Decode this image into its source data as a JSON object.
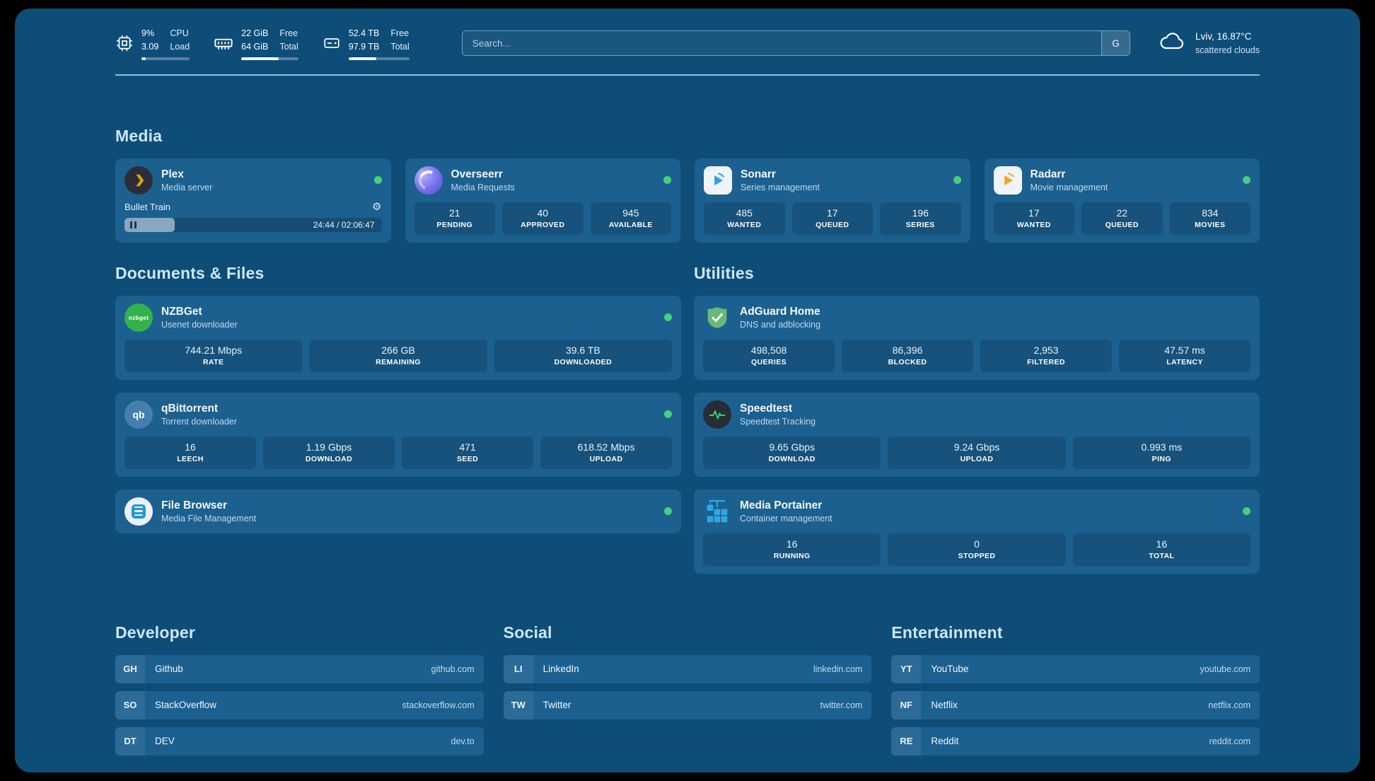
{
  "colors": {
    "background": "#0e4d78",
    "card": "#1c6090",
    "section_heading": "#cde7fa",
    "status_online": "#43d17a",
    "plex_amber": "#e5a00d",
    "sonarr_blue": "#2f9ceb",
    "radarr_orange": "#f5a623",
    "adguard_green": "#67b97a",
    "speedtest_green": "#35d06e",
    "portainer_blue": "#2fa8e1"
  },
  "header": {
    "cpu": {
      "percent": "9%",
      "load": "3.09",
      "label_top": "CPU",
      "label_bottom": "Load",
      "bar_pct": 9
    },
    "memory": {
      "free": "22 GiB",
      "total": "64 GiB",
      "label_top": "Free",
      "label_bottom": "Total",
      "bar_pct": 66
    },
    "storage": {
      "free": "52.4 TB",
      "total": "97.9 TB",
      "label_top": "Free",
      "label_bottom": "Total",
      "bar_pct": 46
    },
    "search": {
      "placeholder": "Search...",
      "button_label": "G"
    },
    "weather": {
      "location": "Lviv, 16.87°C",
      "condition": "scattered clouds"
    }
  },
  "media": {
    "title": "Media",
    "plex": {
      "title": "Plex",
      "subtitle": "Media server",
      "online": true,
      "now_playing": "Bullet Train",
      "time": "24:44 / 02:06:47",
      "progress_pct": 19.5
    },
    "overseerr": {
      "title": "Overseerr",
      "subtitle": "Media Requests",
      "online": true,
      "stats": [
        {
          "value": "21",
          "label": "PENDING"
        },
        {
          "value": "40",
          "label": "APPROVED"
        },
        {
          "value": "945",
          "label": "AVAILABLE"
        }
      ]
    },
    "sonarr": {
      "title": "Sonarr",
      "subtitle": "Series management",
      "online": true,
      "stats": [
        {
          "value": "485",
          "label": "WANTED"
        },
        {
          "value": "17",
          "label": "QUEUED"
        },
        {
          "value": "196",
          "label": "SERIES"
        }
      ]
    },
    "radarr": {
      "title": "Radarr",
      "subtitle": "Movie management",
      "online": true,
      "stats": [
        {
          "value": "17",
          "label": "WANTED"
        },
        {
          "value": "22",
          "label": "QUEUED"
        },
        {
          "value": "834",
          "label": "MOVIES"
        }
      ]
    }
  },
  "documents": {
    "title": "Documents & Files",
    "nzbget": {
      "title": "NZBGet",
      "subtitle": "Usenet downloader",
      "online": true,
      "icon_text": "nzbget",
      "stats": [
        {
          "value": "744.21 Mbps",
          "label": "RATE"
        },
        {
          "value": "266 GB",
          "label": "REMAINING"
        },
        {
          "value": "39.6 TB",
          "label": "DOWNLOADED"
        }
      ]
    },
    "qbittorrent": {
      "title": "qBittorrent",
      "subtitle": "Torrent downloader",
      "online": true,
      "icon_text": "qb",
      "stats": [
        {
          "value": "16",
          "label": "LEECH"
        },
        {
          "value": "1.19 Gbps",
          "label": "DOWNLOAD"
        },
        {
          "value": "471",
          "label": "SEED"
        },
        {
          "value": "618.52 Mbps",
          "label": "UPLOAD"
        }
      ]
    },
    "filebrowser": {
      "title": "File Browser",
      "subtitle": "Media File Management",
      "online": true
    }
  },
  "utilities": {
    "title": "Utilities",
    "adguard": {
      "title": "AdGuard Home",
      "subtitle": "DNS and adblocking",
      "stats": [
        {
          "value": "498,508",
          "label": "QUERIES"
        },
        {
          "value": "86,396",
          "label": "BLOCKED"
        },
        {
          "value": "2,953",
          "label": "FILTERED"
        },
        {
          "value": "47.57 ms",
          "label": "LATENCY"
        }
      ]
    },
    "speedtest": {
      "title": "Speedtest",
      "subtitle": "Speedtest Tracking",
      "stats": [
        {
          "value": "9.65 Gbps",
          "label": "DOWNLOAD"
        },
        {
          "value": "9.24 Gbps",
          "label": "UPLOAD"
        },
        {
          "value": "0.993 ms",
          "label": "PING"
        }
      ]
    },
    "portainer": {
      "title": "Media Portainer",
      "subtitle": "Container management",
      "online": true,
      "stats": [
        {
          "value": "16",
          "label": "RUNNING"
        },
        {
          "value": "0",
          "label": "STOPPED"
        },
        {
          "value": "16",
          "label": "TOTAL"
        }
      ]
    }
  },
  "bookmarks": {
    "developer": {
      "title": "Developer",
      "items": [
        {
          "abbr": "GH",
          "name": "Github",
          "url": "github.com"
        },
        {
          "abbr": "SO",
          "name": "StackOverflow",
          "url": "stackoverflow.com"
        },
        {
          "abbr": "DT",
          "name": "DEV",
          "url": "dev.to"
        }
      ]
    },
    "social": {
      "title": "Social",
      "items": [
        {
          "abbr": "LI",
          "name": "LinkedIn",
          "url": "linkedin.com"
        },
        {
          "abbr": "TW",
          "name": "Twitter",
          "url": "twitter.com"
        }
      ]
    },
    "entertainment": {
      "title": "Entertainment",
      "items": [
        {
          "abbr": "YT",
          "name": "YouTube",
          "url": "youtube.com"
        },
        {
          "abbr": "NF",
          "name": "Netflix",
          "url": "netflix.com"
        },
        {
          "abbr": "RE",
          "name": "Reddit",
          "url": "reddit.com"
        }
      ]
    }
  }
}
